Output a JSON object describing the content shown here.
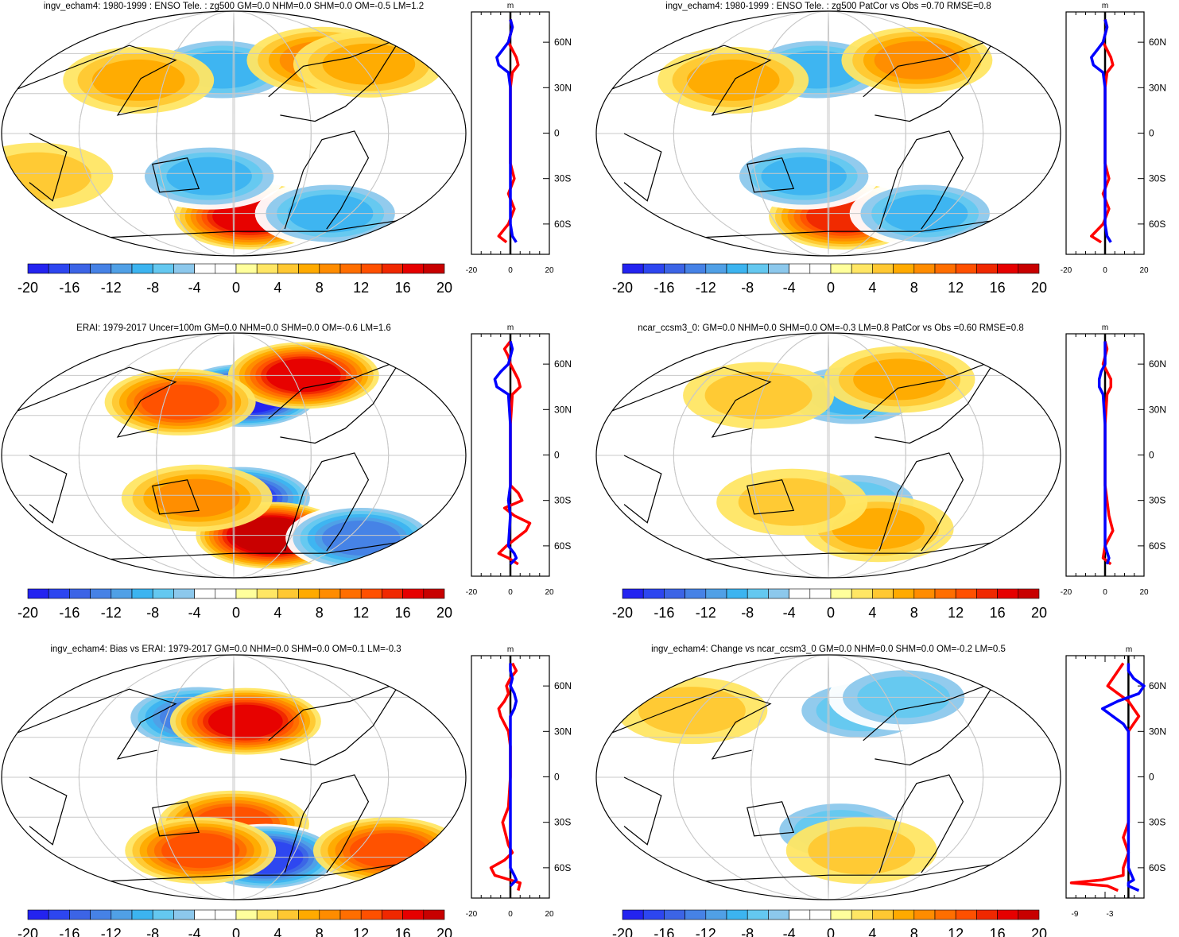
{
  "colorbar": {
    "colors": [
      "#2323f0",
      "#2d46f0",
      "#3c64e6",
      "#4682e6",
      "#50a0e6",
      "#3cb4f0",
      "#64c8f0",
      "#8cc8ec",
      "#ffffff",
      "#ffffff",
      "#ffff9c",
      "#ffe664",
      "#ffc832",
      "#ffaa00",
      "#ff8c00",
      "#ff6e00",
      "#ff5000",
      "#f02800",
      "#e60000",
      "#c80000"
    ],
    "levels": [
      -20,
      -18,
      -16,
      -14,
      -12,
      -10,
      -8,
      -6,
      -4,
      -2,
      0,
      2,
      4,
      6,
      8,
      10,
      12,
      14,
      16,
      18,
      20
    ],
    "labels": [
      "-20",
      "-16",
      "-12",
      "-8",
      "-4",
      "0",
      "4",
      "8",
      "12",
      "16",
      "20"
    ]
  },
  "panels": [
    {
      "id": "p1",
      "title": "ingv_echam4: 1980-1999 : ENSO Tele. : zg500 GM=0.0 NHM=0.0 SHM=0.0 OM=-0.5 LM=1.2",
      "profile_xticks": [
        "-20",
        "0",
        "20"
      ],
      "profile_unit": "m"
    },
    {
      "id": "p2",
      "title": "ingv_echam4: 1980-1999 : ENSO Tele. : zg500 PatCor vs Obs =0.70 RMSE=0.8",
      "profile_xticks": [
        "-20",
        "0",
        "20"
      ],
      "profile_unit": "m"
    },
    {
      "id": "p3",
      "title": "ERAI: 1979-2017 Uncer=100m GM=0.0 NHM=0.0 SHM=0.0 OM=-0.6 LM=1.6",
      "profile_xticks": [
        "-20",
        "0",
        "20"
      ],
      "profile_unit": "m"
    },
    {
      "id": "p4",
      "title": "ncar_ccsm3_0: GM=0.0 NHM=0.0 SHM=0.0 OM=-0.3 LM=0.8 PatCor vs Obs =0.60 RMSE=0.8",
      "profile_xticks": [
        "-20",
        "0",
        "20"
      ],
      "profile_unit": "m"
    },
    {
      "id": "p5",
      "title": "ingv_echam4: Bias vs ERAI: 1979-2017 GM=0.0 NHM=0.0 SHM=0.0 OM=0.1 LM=-0.3",
      "profile_xticks": [
        "-20",
        "0",
        "20"
      ],
      "profile_unit": "m"
    },
    {
      "id": "p6",
      "title": "ingv_echam4: Change vs ncar_ccsm3_0 GM=0.0 NHM=0.0 SHM=0.0 OM=-0.2 LM=0.5",
      "profile_xticks": [
        "-9",
        "-3"
      ],
      "profile_unit": "m"
    }
  ],
  "chart_data": {
    "type": "heatmap",
    "projection": "Robinson (Pacific-centered)",
    "variable": "zg500",
    "units": "m",
    "latitude_ticks": [
      "60N",
      "30N",
      "0",
      "30S",
      "60S"
    ],
    "colorbar_range": [
      -20,
      20
    ],
    "colorbar_interval": 2,
    "maps": [
      {
        "panel": "p1",
        "anomalies": [
          {
            "lon": 170,
            "lat": 48,
            "value": -8
          },
          {
            "lon": 100,
            "lat": 40,
            "value": 6
          },
          {
            "lon": -100,
            "lat": 55,
            "value": 8
          },
          {
            "lon": -60,
            "lat": 52,
            "value": 6
          },
          {
            "lon": -165,
            "lat": -62,
            "value": 16
          },
          {
            "lon": 160,
            "lat": -32,
            "value": -8
          },
          {
            "lon": 20,
            "lat": -32,
            "value": 4
          },
          {
            "lon": -90,
            "lat": -60,
            "value": -8
          }
        ]
      },
      {
        "panel": "p2",
        "anomalies": [
          {
            "lon": 170,
            "lat": 48,
            "value": -8
          },
          {
            "lon": 100,
            "lat": 40,
            "value": 6
          },
          {
            "lon": -100,
            "lat": 55,
            "value": 8
          },
          {
            "lon": -165,
            "lat": -62,
            "value": 14
          },
          {
            "lon": 160,
            "lat": -32,
            "value": -8
          },
          {
            "lon": -90,
            "lat": -60,
            "value": -8
          }
        ]
      },
      {
        "panel": "p3",
        "anomalies": [
          {
            "lon": -170,
            "lat": 45,
            "value": -20
          },
          {
            "lon": -115,
            "lat": 60,
            "value": 16
          },
          {
            "lon": 135,
            "lat": 40,
            "value": 12
          },
          {
            "lon": -175,
            "lat": -32,
            "value": -16
          },
          {
            "lon": -145,
            "lat": -60,
            "value": 20
          },
          {
            "lon": 150,
            "lat": -32,
            "value": 8
          },
          {
            "lon": -60,
            "lat": -62,
            "value": -12
          }
        ]
      },
      {
        "panel": "p4",
        "anomalies": [
          {
            "lon": -160,
            "lat": 45,
            "value": -8
          },
          {
            "lon": -115,
            "lat": 57,
            "value": 6
          },
          {
            "lon": 120,
            "lat": 45,
            "value": 4
          },
          {
            "lon": -160,
            "lat": -35,
            "value": -6
          },
          {
            "lon": -135,
            "lat": -55,
            "value": 6
          },
          {
            "lon": 150,
            "lat": -35,
            "value": 4
          }
        ]
      },
      {
        "panel": "p5",
        "anomalies": [
          {
            "lon": 150,
            "lat": 45,
            "value": -12
          },
          {
            "lon": -170,
            "lat": 42,
            "value": 16
          },
          {
            "lon": 180,
            "lat": -35,
            "value": 12
          },
          {
            "lon": -150,
            "lat": -60,
            "value": -16
          },
          {
            "lon": 150,
            "lat": -55,
            "value": 12
          },
          {
            "lon": -40,
            "lat": -55,
            "value": 12
          }
        ]
      },
      {
        "panel": "p6",
        "anomalies": [
          {
            "lon": -150,
            "lat": 50,
            "value": -6
          },
          {
            "lon": -110,
            "lat": 60,
            "value": -6
          },
          {
            "lon": -170,
            "lat": -40,
            "value": -6
          },
          {
            "lon": -150,
            "lat": -55,
            "value": 4
          },
          {
            "lon": 60,
            "lat": 50,
            "value": 4
          }
        ]
      }
    ],
    "zonal_profiles": [
      {
        "panel": "p1",
        "xlim": [
          -20,
          20
        ],
        "ylim": [
          -90,
          90
        ],
        "series": [
          {
            "color": "red",
            "lat": [
              -72,
              -68,
              -60,
              -50,
              -40,
              -30,
              -20,
              0,
              20,
              30,
              40,
              45,
              50,
              55,
              60,
              65,
              70,
              75
            ],
            "value": [
              -2,
              -6,
              -1,
              2,
              -1,
              2,
              0,
              0,
              0,
              0,
              1,
              4,
              3,
              1,
              -1,
              0,
              1,
              0
            ]
          },
          {
            "color": "blue",
            "lat": [
              -72,
              -68,
              -60,
              -40,
              -20,
              0,
              20,
              30,
              40,
              45,
              50,
              55,
              60,
              65,
              70,
              75
            ],
            "value": [
              3,
              1,
              0,
              0,
              0,
              0,
              0,
              0,
              -1,
              -6,
              -7,
              -4,
              -1,
              0,
              1,
              0
            ]
          }
        ]
      },
      {
        "panel": "p2",
        "xlim": [
          -20,
          20
        ],
        "ylim": [
          -90,
          90
        ],
        "series": [
          {
            "color": "red",
            "lat": [
              -72,
              -68,
              -60,
              -50,
              -40,
              -30,
              -20,
              0,
              20,
              30,
              40,
              45,
              50,
              55,
              60,
              65,
              70,
              75
            ],
            "value": [
              -2,
              -7,
              -1,
              2,
              -1,
              2,
              0,
              0,
              0,
              0,
              1,
              4,
              3,
              1,
              -1,
              0,
              1,
              0
            ]
          },
          {
            "color": "blue",
            "lat": [
              -72,
              -68,
              -60,
              -40,
              -20,
              0,
              20,
              30,
              40,
              45,
              50,
              55,
              60,
              65,
              70,
              75
            ],
            "value": [
              3,
              1,
              0,
              0,
              0,
              0,
              0,
              0,
              -1,
              -6,
              -7,
              -4,
              -1,
              0,
              1,
              0
            ]
          }
        ]
      },
      {
        "panel": "p3",
        "xlim": [
          -20,
          20
        ],
        "ylim": [
          -90,
          90
        ],
        "series": [
          {
            "color": "red",
            "lat": [
              -72,
              -68,
              -65,
              -60,
              -55,
              -50,
              -45,
              -40,
              -35,
              -30,
              -25,
              -20,
              0,
              20,
              40,
              45,
              50,
              55,
              60,
              65,
              70,
              75
            ],
            "value": [
              4,
              -1,
              -6,
              -2,
              3,
              8,
              10,
              2,
              -3,
              6,
              4,
              0,
              0,
              0,
              1,
              5,
              4,
              2,
              0,
              -1,
              -3,
              0
            ]
          },
          {
            "color": "blue",
            "lat": [
              -72,
              -68,
              -65,
              -60,
              -40,
              -30,
              -20,
              0,
              20,
              40,
              45,
              50,
              55,
              60,
              65,
              70,
              75
            ],
            "value": [
              0,
              3,
              2,
              -1,
              0,
              -1,
              0,
              0,
              0,
              -1,
              -7,
              -8,
              -5,
              -1,
              0,
              1,
              0
            ]
          }
        ]
      },
      {
        "panel": "p4",
        "xlim": [
          -20,
          20
        ],
        "ylim": [
          -90,
          90
        ],
        "series": [
          {
            "color": "red",
            "lat": [
              -72,
              -68,
              -60,
              -50,
              -40,
              -30,
              -20,
              0,
              20,
              40,
              45,
              50,
              55,
              60,
              65,
              70,
              75
            ],
            "value": [
              3,
              -1,
              0,
              4,
              2,
              1,
              0,
              0,
              0,
              1,
              3,
              3,
              1,
              -1,
              0,
              1,
              0
            ]
          },
          {
            "color": "blue",
            "lat": [
              -72,
              -68,
              -60,
              -40,
              -20,
              0,
              20,
              40,
              45,
              50,
              55,
              60,
              65,
              70,
              75
            ],
            "value": [
              1,
              2,
              0,
              0,
              0,
              0,
              0,
              -1,
              -3,
              -3,
              -2,
              0,
              0,
              0,
              0
            ]
          }
        ]
      },
      {
        "panel": "p5",
        "xlim": [
          -20,
          20
        ],
        "ylim": [
          -90,
          90
        ],
        "series": [
          {
            "color": "red",
            "lat": [
              -75,
              -70,
              -65,
              -60,
              -55,
              -50,
              -45,
              -40,
              -30,
              -20,
              0,
              20,
              30,
              40,
              45,
              50,
              55,
              60,
              65,
              70,
              75
            ],
            "value": [
              4,
              5,
              -8,
              -10,
              -3,
              1,
              -1,
              -2,
              -4,
              -1,
              0,
              0,
              -1,
              -5,
              -6,
              -3,
              -1,
              -2,
              0,
              3,
              1
            ]
          },
          {
            "color": "blue",
            "lat": [
              -72,
              -68,
              -65,
              -60,
              -40,
              -20,
              0,
              20,
              40,
              45,
              50,
              55,
              60,
              65,
              70,
              75
            ],
            "value": [
              0,
              3,
              2,
              0,
              0,
              0,
              0,
              0,
              0,
              2,
              3,
              2,
              0,
              1,
              0,
              0
            ]
          }
        ]
      },
      {
        "panel": "p6",
        "xlim": [
          -12,
          3
        ],
        "ylim": [
          -90,
          90
        ],
        "series": [
          {
            "color": "red",
            "lat": [
              -75,
              -72,
              -70,
              -68,
              -65,
              -60,
              -50,
              -40,
              -30,
              -20,
              0,
              20,
              30,
              35,
              40,
              45,
              50,
              55,
              60,
              65,
              70,
              75
            ],
            "value": [
              -2,
              -4,
              -11,
              -5,
              -1,
              -1,
              0,
              -1,
              0,
              0,
              0,
              0,
              0,
              1,
              2,
              1,
              0,
              -2,
              -4,
              -3,
              -2,
              -1
            ]
          },
          {
            "color": "blue",
            "lat": [
              -75,
              -72,
              -70,
              -68,
              -60,
              -40,
              -20,
              0,
              20,
              30,
              35,
              40,
              45,
              50,
              55,
              60,
              65,
              70,
              75
            ],
            "value": [
              2,
              0,
              0,
              1,
              0,
              0,
              0,
              0,
              0,
              0,
              -1,
              -3,
              -5,
              -2,
              2,
              3,
              1,
              0,
              0
            ]
          }
        ]
      }
    ]
  }
}
